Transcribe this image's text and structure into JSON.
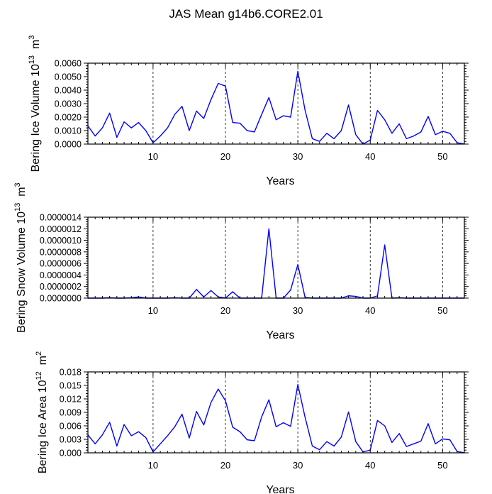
{
  "title": "JAS Mean g14b6.CORE2.01",
  "colors": {
    "line": "#0000ff",
    "axis": "#000000",
    "grid": "#000000"
  },
  "chart_data": [
    {
      "type": "line",
      "title": "JAS Mean g14b6.CORE2.01",
      "xlabel": "Years",
      "ylabel": {
        "text": "Bering Ice Volume 10",
        "exp": "13",
        "unit": "m",
        "unit_exp": "3"
      },
      "xlim": [
        1,
        53
      ],
      "ylim": [
        0,
        0.006
      ],
      "xticks": [
        10,
        20,
        30,
        40,
        50
      ],
      "yticks": [
        0.0,
        0.001,
        0.002,
        0.003,
        0.004,
        0.005,
        0.006
      ],
      "ytick_labels": [
        "0.0000",
        "0.0010",
        "0.0020",
        "0.0030",
        "0.0040",
        "0.0050",
        "0.0060"
      ],
      "grid": "vertical dashed at x ticks",
      "series": [
        {
          "name": "Bering Ice Volume",
          "x": [
            1,
            2,
            3,
            4,
            5,
            6,
            7,
            8,
            9,
            10,
            11,
            12,
            13,
            14,
            15,
            16,
            17,
            18,
            19,
            20,
            21,
            22,
            23,
            24,
            25,
            26,
            27,
            28,
            29,
            30,
            31,
            32,
            33,
            34,
            35,
            36,
            37,
            38,
            39,
            40,
            41,
            42,
            43,
            44,
            45,
            46,
            47,
            48,
            49,
            50,
            51,
            52,
            53
          ],
          "values": [
            0.00135,
            0.0006,
            0.0012,
            0.0023,
            0.0005,
            0.00165,
            0.0012,
            0.0016,
            0.001,
            0.0001,
            0.0006,
            0.0012,
            0.0022,
            0.0028,
            0.001,
            0.00245,
            0.0019,
            0.0033,
            0.0045,
            0.0043,
            0.0016,
            0.00155,
            0.001,
            0.0009,
            0.0022,
            0.00345,
            0.0018,
            0.0021,
            0.002,
            0.0054,
            0.0025,
            0.0004,
            0.0002,
            0.0008,
            0.0004,
            0.001,
            0.0029,
            0.0007,
            0.0,
            0.0003,
            0.0025,
            0.0018,
            0.0008,
            0.0015,
            0.0004,
            0.0006,
            0.0009,
            0.00205,
            0.0007,
            0.00095,
            0.0008,
            0.0001,
            0.0
          ]
        }
      ]
    },
    {
      "type": "line",
      "xlabel": "Years",
      "ylabel": {
        "text": "Bering Snow Volume 10",
        "exp": "13",
        "unit": "m",
        "unit_exp": "3"
      },
      "xlim": [
        1,
        53
      ],
      "ylim": [
        0,
        1.4e-06
      ],
      "xticks": [
        10,
        20,
        30,
        40,
        50
      ],
      "yticks": [
        0,
        2e-07,
        4e-07,
        6e-07,
        8e-07,
        1e-06,
        1.2e-06,
        1.4e-06
      ],
      "ytick_labels": [
        "0.0000000",
        "0.0000002",
        "0.0000004",
        "0.0000006",
        "0.0000008",
        "0.0000010",
        "0.0000012",
        "0.0000014"
      ],
      "grid": "vertical dashed at x ticks",
      "series": [
        {
          "name": "Bering Snow Volume",
          "x": [
            1,
            2,
            3,
            4,
            5,
            6,
            7,
            8,
            9,
            10,
            11,
            12,
            13,
            14,
            15,
            16,
            17,
            18,
            19,
            20,
            21,
            22,
            23,
            24,
            25,
            26,
            27,
            28,
            29,
            30,
            31,
            32,
            33,
            34,
            35,
            36,
            37,
            38,
            39,
            40,
            41,
            42,
            43,
            44,
            45,
            46,
            47,
            48,
            49,
            50,
            51,
            52,
            53
          ],
          "values": [
            0.0,
            0.0,
            0.0,
            5e-09,
            0.0,
            0.0,
            5e-09,
            2e-08,
            0.0,
            0.0,
            0.0,
            0.0,
            5e-09,
            0.0,
            0.0,
            1.5e-07,
            2e-08,
            1.3e-07,
            2e-08,
            0.0,
            1.1e-07,
            0.0,
            0.0,
            0.0,
            0.0,
            1.2e-06,
            0.0,
            0.0,
            1.4e-07,
            5.8e-07,
            1e-08,
            0.0,
            0.0,
            0.0,
            0.0,
            0.0,
            4e-08,
            3e-08,
            0.0,
            0.0,
            4e-08,
            9.2e-07,
            0.0,
            5e-09,
            0.0,
            0.0,
            0.0,
            0.0,
            0.0,
            0.0,
            0.0,
            0.0,
            0.0
          ]
        }
      ]
    },
    {
      "type": "line",
      "xlabel": "Years",
      "ylabel": {
        "text": "Bering Ice Area 10",
        "exp": "12",
        "unit": "m",
        "unit_exp": "2"
      },
      "xlim": [
        1,
        53
      ],
      "ylim": [
        0,
        0.018
      ],
      "xticks": [
        10,
        20,
        30,
        40,
        50
      ],
      "yticks": [
        0.0,
        0.003,
        0.006,
        0.009,
        0.012,
        0.015,
        0.018
      ],
      "ytick_labels": [
        "0.000",
        "0.003",
        "0.006",
        "0.009",
        "0.012",
        "0.015",
        "0.018"
      ],
      "grid": "vertical dashed at x ticks",
      "series": [
        {
          "name": "Bering Ice Area",
          "x": [
            1,
            2,
            3,
            4,
            5,
            6,
            7,
            8,
            9,
            10,
            11,
            12,
            13,
            14,
            15,
            16,
            17,
            18,
            19,
            20,
            21,
            22,
            23,
            24,
            25,
            26,
            27,
            28,
            29,
            30,
            31,
            32,
            33,
            34,
            35,
            36,
            37,
            38,
            39,
            40,
            41,
            42,
            43,
            44,
            45,
            46,
            47,
            48,
            49,
            50,
            51,
            52,
            53
          ],
          "values": [
            0.004,
            0.002,
            0.004,
            0.0068,
            0.0015,
            0.0063,
            0.0038,
            0.0047,
            0.0034,
            0.0002,
            0.002,
            0.0038,
            0.0058,
            0.0086,
            0.0033,
            0.0092,
            0.0062,
            0.0112,
            0.0142,
            0.0116,
            0.0057,
            0.0047,
            0.0029,
            0.0027,
            0.008,
            0.0118,
            0.0058,
            0.0067,
            0.0059,
            0.0152,
            0.0079,
            0.0015,
            0.0007,
            0.0025,
            0.0015,
            0.0035,
            0.0091,
            0.0025,
            0.0002,
            0.0006,
            0.0072,
            0.006,
            0.0023,
            0.0043,
            0.0014,
            0.002,
            0.0026,
            0.0065,
            0.002,
            0.0031,
            0.0029,
            0.0003,
            0.0
          ]
        }
      ]
    }
  ]
}
